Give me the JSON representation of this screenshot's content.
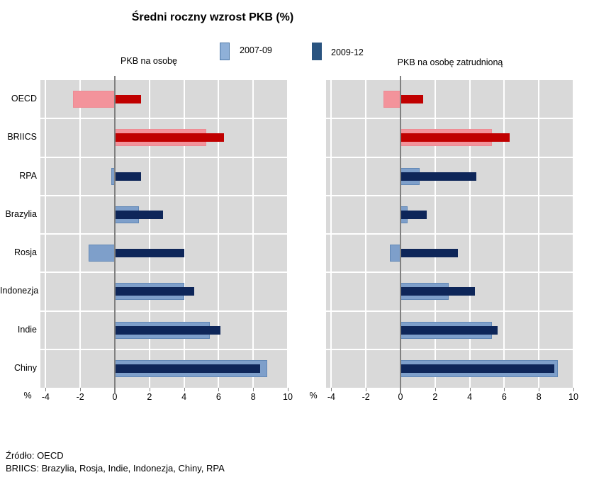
{
  "title": "Średni roczny wzrost PKB (%)",
  "legend": {
    "items": [
      {
        "label": "2007-09"
      },
      {
        "label": "2009-12"
      }
    ]
  },
  "colors": {
    "plot_bg": "#D9D9D9",
    "grid": "#FFFFFF",
    "axis": "#808080",
    "blue_light": "#7E9FCA",
    "blue_light_border": "#6288B6",
    "blue_dark": "#0E2659",
    "red_light": "#F3939B",
    "red_light_border": "#EE8A93",
    "red_dark": "#C00000",
    "legend_light": "#8FB0D8",
    "legend_light_border": "#4F79A8",
    "legend_dark": "#2A5480"
  },
  "source_line1": "Źródło: OECD",
  "source_line2": "BRIICS: Brazylia, Rosja, Indie, Indonezja, Chiny, RPA",
  "chart_data": [
    {
      "type": "bar",
      "orientation": "horizontal",
      "title": "PKB na osobę",
      "xlabel": "%",
      "xlim": [
        -4.3,
        10
      ],
      "ticks": [
        -4,
        -2,
        0,
        2,
        4,
        6,
        8,
        10
      ],
      "grid": true,
      "legend_position": "top",
      "categories": [
        "OECD",
        "BRIICS",
        "RPA",
        "Brazylia",
        "Rosja",
        "Indonezja",
        "Indie",
        "Chiny"
      ],
      "series": [
        {
          "name": "2007-09",
          "values": [
            -2.4,
            5.3,
            -0.2,
            1.4,
            -1.5,
            4.0,
            5.5,
            8.8
          ]
        },
        {
          "name": "2009-12",
          "values": [
            1.5,
            6.3,
            1.5,
            2.8,
            4.0,
            4.6,
            6.1,
            8.4
          ]
        }
      ],
      "highlight_categories": [
        "OECD",
        "BRIICS"
      ],
      "show_category_labels": true
    },
    {
      "type": "bar",
      "orientation": "horizontal",
      "title": "PKB na osobę zatrudnioną",
      "xlabel": "%",
      "xlim": [
        -4.3,
        10
      ],
      "ticks": [
        -4,
        -2,
        0,
        2,
        4,
        6,
        8,
        10
      ],
      "grid": true,
      "legend_position": "top",
      "categories": [
        "OECD",
        "BRIICS",
        "RPA",
        "Brazylia",
        "Rosja",
        "Indonezja",
        "Indie",
        "Chiny"
      ],
      "series": [
        {
          "name": "2007-09",
          "values": [
            -1.0,
            5.3,
            1.1,
            0.4,
            -0.6,
            2.8,
            5.3,
            9.1
          ]
        },
        {
          "name": "2009-12",
          "values": [
            1.3,
            6.3,
            4.4,
            1.5,
            3.3,
            4.3,
            5.6,
            8.9
          ]
        }
      ],
      "highlight_categories": [
        "OECD",
        "BRIICS"
      ],
      "show_category_labels": false
    }
  ]
}
